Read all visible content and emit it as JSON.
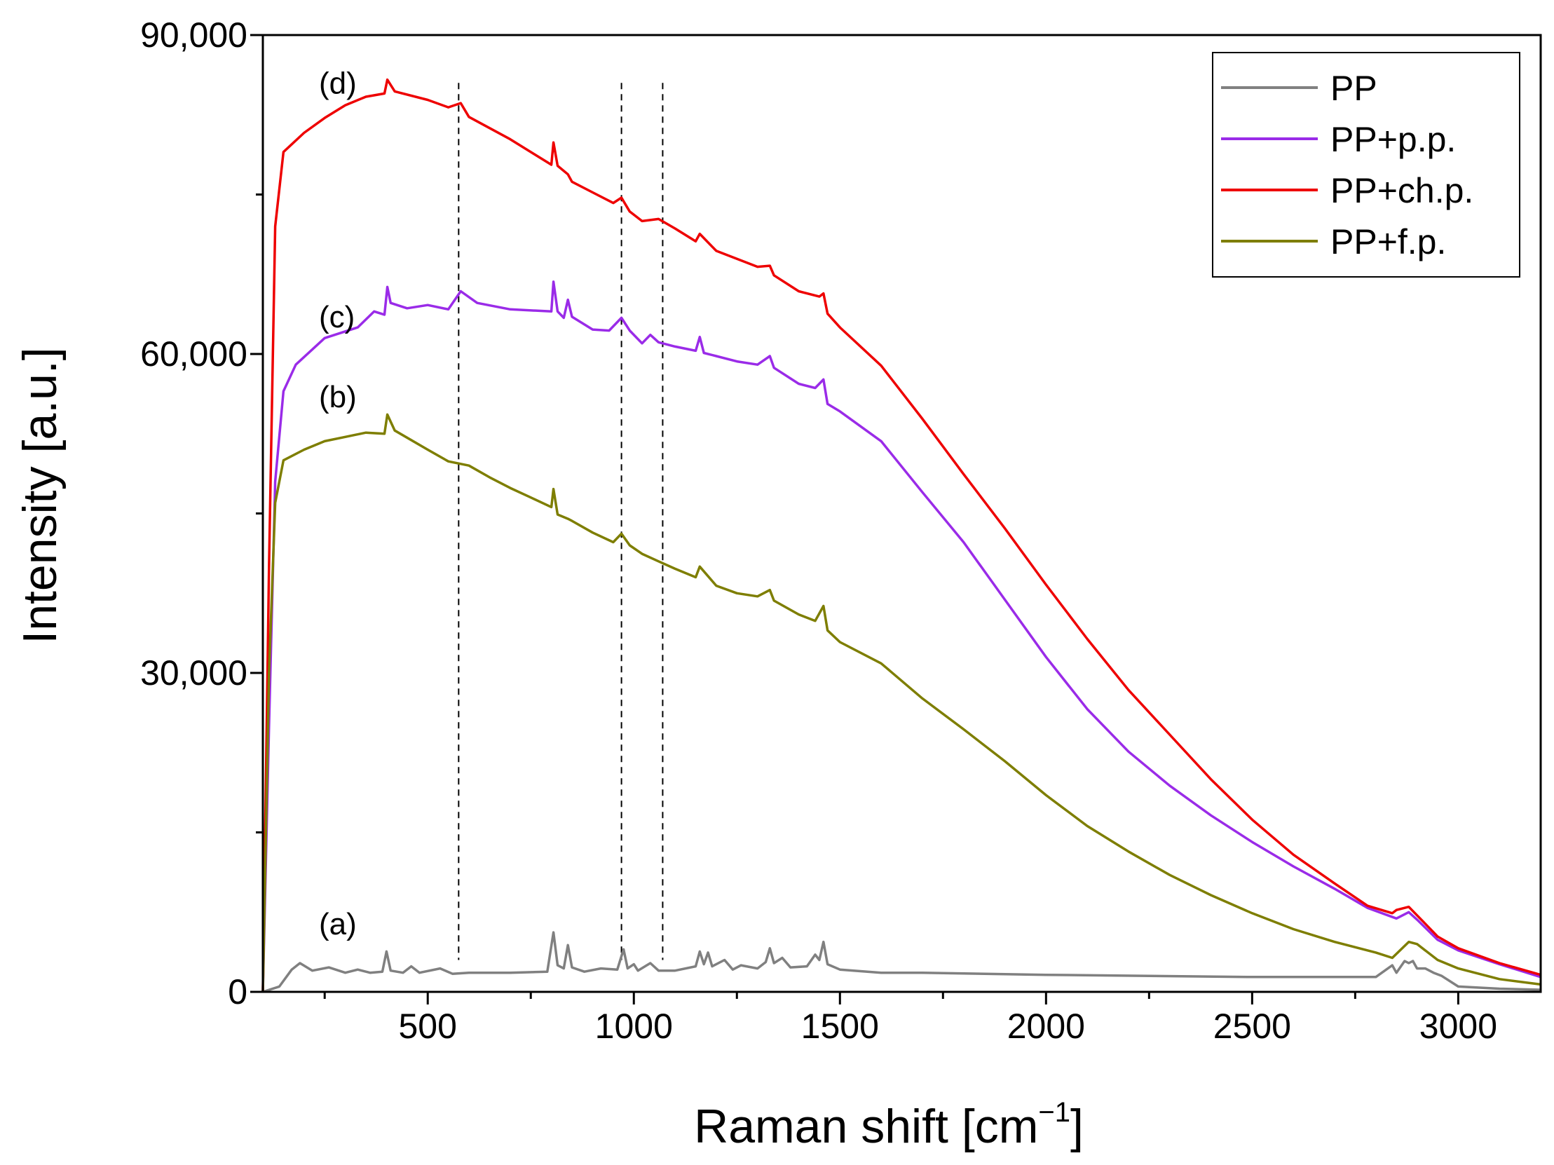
{
  "chart_data": {
    "type": "line",
    "xlabel": "Raman shift [cm",
    "xlabel_sup": "−1",
    "xlabel_close": "]",
    "ylabel": "Intensity [a.u.]",
    "xlim": [
      100,
      3200
    ],
    "ylim": [
      0,
      90000
    ],
    "x_ticks": [
      {
        "value": 500,
        "label": "500"
      },
      {
        "value": 1000,
        "label": "1000"
      },
      {
        "value": 1500,
        "label": "1500"
      },
      {
        "value": 2000,
        "label": "2000"
      },
      {
        "value": 2500,
        "label": "2500"
      },
      {
        "value": 3000,
        "label": "3000"
      }
    ],
    "y_ticks": [
      {
        "value": 0,
        "label": "0"
      },
      {
        "value": 30000,
        "label": "30,000"
      },
      {
        "value": 60000,
        "label": "60,000"
      },
      {
        "value": 90000,
        "label": "90,000"
      }
    ],
    "reference_lines_x": [
      575,
      970,
      1070
    ],
    "legend": {
      "position": "top-right"
    },
    "series": [
      {
        "name": "PP",
        "color": "#808080",
        "tag": "(a)",
        "tag_at": [
          80,
          5400
        ],
        "points": [
          [
            100,
            0
          ],
          [
            140,
            500
          ],
          [
            170,
            2100
          ],
          [
            190,
            2700
          ],
          [
            220,
            2000
          ],
          [
            260,
            2300
          ],
          [
            300,
            1800
          ],
          [
            330,
            2100
          ],
          [
            360,
            1800
          ],
          [
            390,
            1900
          ],
          [
            400,
            3800
          ],
          [
            410,
            2000
          ],
          [
            440,
            1800
          ],
          [
            460,
            2400
          ],
          [
            480,
            1800
          ],
          [
            530,
            2200
          ],
          [
            560,
            1700
          ],
          [
            600,
            1800
          ],
          [
            700,
            1800
          ],
          [
            790,
            1900
          ],
          [
            805,
            5600
          ],
          [
            815,
            2500
          ],
          [
            830,
            2200
          ],
          [
            840,
            4400
          ],
          [
            850,
            2300
          ],
          [
            880,
            1900
          ],
          [
            920,
            2200
          ],
          [
            960,
            2100
          ],
          [
            975,
            4000
          ],
          [
            985,
            2200
          ],
          [
            1000,
            2600
          ],
          [
            1010,
            2000
          ],
          [
            1040,
            2700
          ],
          [
            1060,
            2000
          ],
          [
            1100,
            2000
          ],
          [
            1150,
            2400
          ],
          [
            1160,
            3800
          ],
          [
            1170,
            2600
          ],
          [
            1180,
            3700
          ],
          [
            1190,
            2400
          ],
          [
            1220,
            3000
          ],
          [
            1240,
            2100
          ],
          [
            1260,
            2500
          ],
          [
            1300,
            2200
          ],
          [
            1320,
            2800
          ],
          [
            1330,
            4100
          ],
          [
            1340,
            2700
          ],
          [
            1360,
            3200
          ],
          [
            1380,
            2300
          ],
          [
            1420,
            2400
          ],
          [
            1440,
            3500
          ],
          [
            1450,
            3000
          ],
          [
            1460,
            4700
          ],
          [
            1470,
            2600
          ],
          [
            1500,
            2100
          ],
          [
            1600,
            1800
          ],
          [
            1700,
            1800
          ],
          [
            2000,
            1600
          ],
          [
            2500,
            1400
          ],
          [
            2700,
            1400
          ],
          [
            2800,
            1400
          ],
          [
            2840,
            2500
          ],
          [
            2850,
            1800
          ],
          [
            2870,
            2900
          ],
          [
            2880,
            2700
          ],
          [
            2890,
            2900
          ],
          [
            2900,
            2200
          ],
          [
            2920,
            2200
          ],
          [
            2940,
            1800
          ],
          [
            2960,
            1500
          ],
          [
            3000,
            500
          ],
          [
            3100,
            300
          ],
          [
            3200,
            200
          ]
        ]
      },
      {
        "name": "PP+p.p.",
        "color": "#9a2be8",
        "tag": "(c)",
        "tag_at": [
          80,
          62500
        ],
        "points": [
          [
            100,
            0
          ],
          [
            115,
            25000
          ],
          [
            130,
            48000
          ],
          [
            150,
            56500
          ],
          [
            180,
            59000
          ],
          [
            250,
            61500
          ],
          [
            330,
            62500
          ],
          [
            370,
            64000
          ],
          [
            395,
            63700
          ],
          [
            402,
            66300
          ],
          [
            410,
            64800
          ],
          [
            450,
            64300
          ],
          [
            500,
            64600
          ],
          [
            550,
            64200
          ],
          [
            580,
            65900
          ],
          [
            620,
            64800
          ],
          [
            700,
            64200
          ],
          [
            800,
            64000
          ],
          [
            805,
            66800
          ],
          [
            815,
            64000
          ],
          [
            830,
            63400
          ],
          [
            840,
            65100
          ],
          [
            850,
            63500
          ],
          [
            900,
            62300
          ],
          [
            940,
            62200
          ],
          [
            970,
            63400
          ],
          [
            990,
            62200
          ],
          [
            1020,
            61000
          ],
          [
            1040,
            61800
          ],
          [
            1060,
            61100
          ],
          [
            1100,
            60700
          ],
          [
            1150,
            60300
          ],
          [
            1160,
            61600
          ],
          [
            1170,
            60100
          ],
          [
            1200,
            59800
          ],
          [
            1250,
            59300
          ],
          [
            1300,
            59000
          ],
          [
            1330,
            59800
          ],
          [
            1340,
            58700
          ],
          [
            1400,
            57200
          ],
          [
            1440,
            56800
          ],
          [
            1460,
            57600
          ],
          [
            1470,
            55300
          ],
          [
            1500,
            54600
          ],
          [
            1600,
            51800
          ],
          [
            1700,
            47000
          ],
          [
            1800,
            42300
          ],
          [
            1900,
            36900
          ],
          [
            2000,
            31500
          ],
          [
            2100,
            26600
          ],
          [
            2200,
            22600
          ],
          [
            2300,
            19400
          ],
          [
            2400,
            16600
          ],
          [
            2500,
            14100
          ],
          [
            2600,
            11800
          ],
          [
            2700,
            9700
          ],
          [
            2780,
            7900
          ],
          [
            2850,
            6900
          ],
          [
            2880,
            7500
          ],
          [
            2900,
            6800
          ],
          [
            2950,
            4900
          ],
          [
            3000,
            3900
          ],
          [
            3100,
            2600
          ],
          [
            3200,
            1400
          ]
        ]
      },
      {
        "name": "PP+ch.p.",
        "color": "#ee0000",
        "tag": "(d)",
        "tag_at": [
          80,
          84500
        ],
        "points": [
          [
            100,
            0
          ],
          [
            115,
            40000
          ],
          [
            130,
            72000
          ],
          [
            150,
            79000
          ],
          [
            200,
            80800
          ],
          [
            250,
            82200
          ],
          [
            300,
            83400
          ],
          [
            350,
            84200
          ],
          [
            395,
            84500
          ],
          [
            402,
            85800
          ],
          [
            420,
            84700
          ],
          [
            500,
            83900
          ],
          [
            550,
            83200
          ],
          [
            580,
            83600
          ],
          [
            600,
            82300
          ],
          [
            700,
            80200
          ],
          [
            800,
            77800
          ],
          [
            805,
            79900
          ],
          [
            815,
            77700
          ],
          [
            840,
            76900
          ],
          [
            850,
            76200
          ],
          [
            900,
            75200
          ],
          [
            950,
            74200
          ],
          [
            970,
            74700
          ],
          [
            990,
            73400
          ],
          [
            1020,
            72500
          ],
          [
            1060,
            72700
          ],
          [
            1100,
            71800
          ],
          [
            1150,
            70600
          ],
          [
            1160,
            71300
          ],
          [
            1200,
            69700
          ],
          [
            1300,
            68200
          ],
          [
            1330,
            68300
          ],
          [
            1340,
            67400
          ],
          [
            1400,
            65900
          ],
          [
            1450,
            65400
          ],
          [
            1460,
            65700
          ],
          [
            1470,
            63800
          ],
          [
            1500,
            62500
          ],
          [
            1600,
            58900
          ],
          [
            1700,
            53900
          ],
          [
            1800,
            48700
          ],
          [
            1900,
            43600
          ],
          [
            2000,
            38300
          ],
          [
            2100,
            33200
          ],
          [
            2200,
            28400
          ],
          [
            2300,
            24200
          ],
          [
            2400,
            20000
          ],
          [
            2500,
            16200
          ],
          [
            2600,
            12900
          ],
          [
            2700,
            10200
          ],
          [
            2780,
            8100
          ],
          [
            2840,
            7400
          ],
          [
            2850,
            7700
          ],
          [
            2880,
            8000
          ],
          [
            2900,
            7200
          ],
          [
            2950,
            5200
          ],
          [
            3000,
            4100
          ],
          [
            3100,
            2700
          ],
          [
            3200,
            1600
          ]
        ]
      },
      {
        "name": "PP+f.p.",
        "color": "#7e7e00",
        "tag": "(b)",
        "tag_at": [
          80,
          55000
        ],
        "points": [
          [
            100,
            0
          ],
          [
            115,
            30000
          ],
          [
            130,
            46000
          ],
          [
            150,
            50000
          ],
          [
            200,
            51000
          ],
          [
            250,
            51800
          ],
          [
            300,
            52200
          ],
          [
            350,
            52600
          ],
          [
            395,
            52500
          ],
          [
            402,
            54300
          ],
          [
            420,
            52800
          ],
          [
            500,
            51000
          ],
          [
            550,
            49900
          ],
          [
            600,
            49500
          ],
          [
            650,
            48400
          ],
          [
            700,
            47400
          ],
          [
            750,
            46500
          ],
          [
            800,
            45600
          ],
          [
            805,
            47300
          ],
          [
            815,
            44900
          ],
          [
            840,
            44500
          ],
          [
            850,
            44300
          ],
          [
            900,
            43200
          ],
          [
            950,
            42300
          ],
          [
            970,
            43100
          ],
          [
            990,
            42000
          ],
          [
            1020,
            41200
          ],
          [
            1060,
            40500
          ],
          [
            1100,
            39800
          ],
          [
            1150,
            39000
          ],
          [
            1160,
            40000
          ],
          [
            1200,
            38200
          ],
          [
            1250,
            37500
          ],
          [
            1300,
            37200
          ],
          [
            1330,
            37800
          ],
          [
            1340,
            36800
          ],
          [
            1400,
            35500
          ],
          [
            1440,
            34900
          ],
          [
            1460,
            36300
          ],
          [
            1470,
            34000
          ],
          [
            1500,
            32900
          ],
          [
            1600,
            30900
          ],
          [
            1700,
            27600
          ],
          [
            1800,
            24700
          ],
          [
            1900,
            21700
          ],
          [
            2000,
            18500
          ],
          [
            2100,
            15600
          ],
          [
            2200,
            13200
          ],
          [
            2300,
            11000
          ],
          [
            2400,
            9100
          ],
          [
            2500,
            7400
          ],
          [
            2600,
            5900
          ],
          [
            2700,
            4700
          ],
          [
            2800,
            3700
          ],
          [
            2840,
            3200
          ],
          [
            2880,
            4700
          ],
          [
            2900,
            4500
          ],
          [
            2950,
            3000
          ],
          [
            3000,
            2200
          ],
          [
            3100,
            1200
          ],
          [
            3200,
            700
          ]
        ]
      }
    ]
  }
}
